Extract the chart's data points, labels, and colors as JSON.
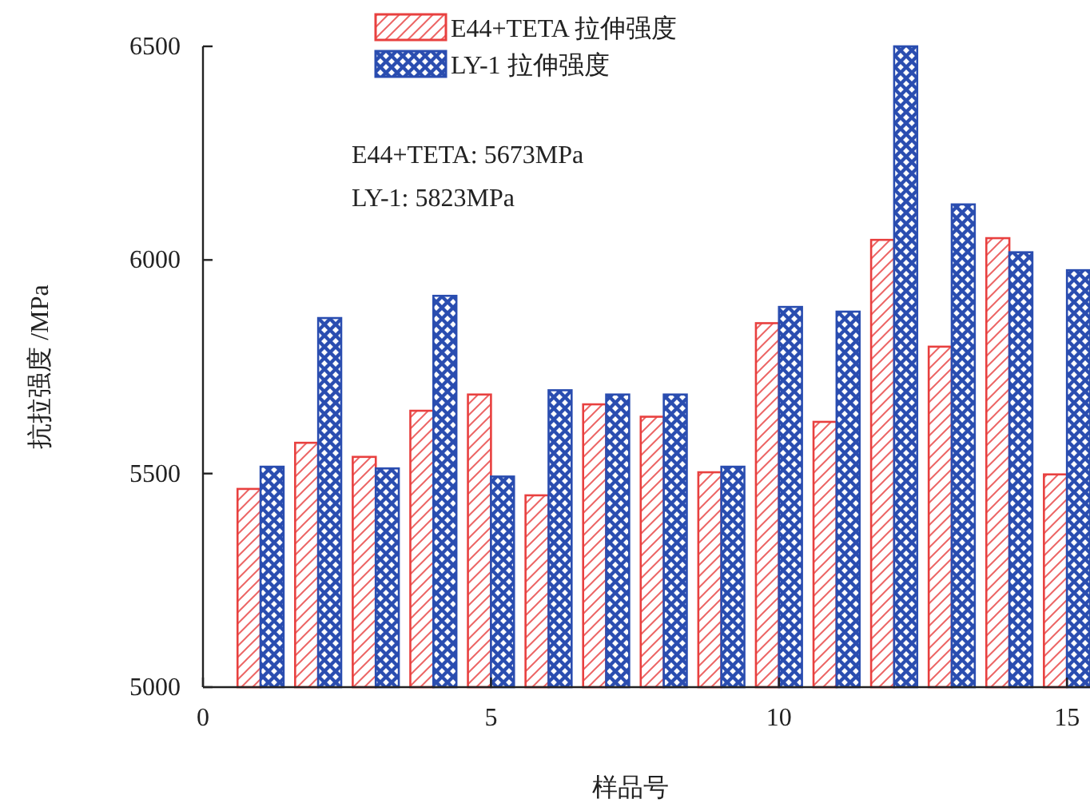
{
  "chart_data": {
    "type": "bar",
    "x": [
      1,
      2,
      3,
      4,
      5,
      6,
      7,
      8,
      9,
      10,
      11,
      12,
      13,
      14,
      15
    ],
    "series": [
      {
        "name": "E44+TETA 拉伸强度",
        "color": "#e8403f",
        "values": [
          5464,
          5572,
          5539,
          5647,
          5685,
          5449,
          5662,
          5633,
          5503,
          5852,
          5621,
          6047,
          5797,
          6051,
          5498
        ]
      },
      {
        "name": "LY-1 拉伸强度",
        "color": "#2a4db0",
        "values": [
          5516,
          5864,
          5512,
          5916,
          5493,
          5695,
          5685,
          5685,
          5516,
          5890,
          5879,
          6500,
          6130,
          6018,
          5976
        ]
      }
    ],
    "xlabel": "样品号",
    "ylabel": "抗拉强度 /MPa",
    "xlim": [
      0,
      15.4
    ],
    "xticks": [
      0,
      5,
      10,
      15
    ],
    "ylim": [
      5000,
      6500
    ],
    "yticks": [
      5000,
      5500,
      6000,
      6500
    ],
    "annotations": [
      "E44+TETA: 5673MPa",
      "LY-1: 5823MPa"
    ],
    "legend": "top"
  }
}
